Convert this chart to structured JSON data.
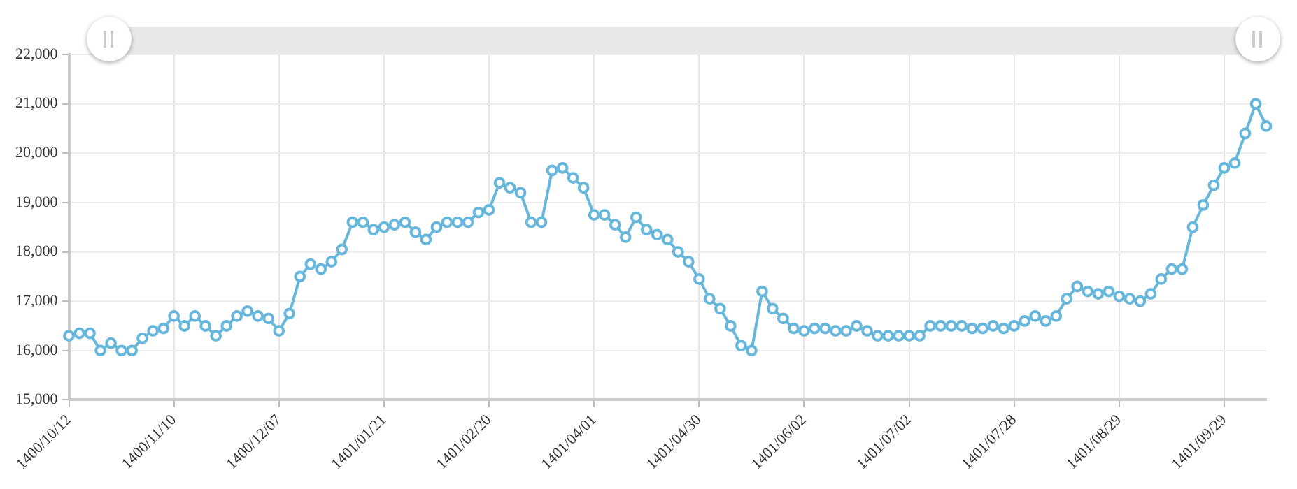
{
  "chart_data": {
    "type": "line",
    "categories": [
      "1400/10/12",
      null,
      null,
      null,
      null,
      null,
      null,
      null,
      null,
      null,
      "1400/11/10",
      null,
      null,
      null,
      null,
      null,
      null,
      null,
      null,
      null,
      "1400/12/07",
      null,
      null,
      null,
      null,
      null,
      null,
      null,
      null,
      null,
      "1401/01/21",
      null,
      null,
      null,
      null,
      null,
      null,
      null,
      null,
      null,
      "1401/02/20",
      null,
      null,
      null,
      null,
      null,
      null,
      null,
      null,
      null,
      "1401/04/01",
      null,
      null,
      null,
      null,
      null,
      null,
      null,
      null,
      null,
      "1401/04/30",
      null,
      null,
      null,
      null,
      null,
      null,
      null,
      null,
      null,
      "1401/06/02",
      null,
      null,
      null,
      null,
      null,
      null,
      null,
      null,
      null,
      "1401/07/02",
      null,
      null,
      null,
      null,
      null,
      null,
      null,
      null,
      null,
      "1401/07/28",
      null,
      null,
      null,
      null,
      null,
      null,
      null,
      null,
      null,
      "1401/08/29",
      null,
      null,
      null,
      null,
      null,
      null,
      null,
      null,
      null,
      "1401/09/29",
      null,
      null,
      null,
      null
    ],
    "series": [
      {
        "color": "#67b7dc",
        "values": [
          16300,
          16350,
          16350,
          16000,
          16150,
          16000,
          16000,
          16250,
          16400,
          16450,
          16700,
          16500,
          16700,
          16500,
          16300,
          16500,
          16700,
          16800,
          16700,
          16650,
          16400,
          16750,
          17500,
          17750,
          17650,
          17800,
          18050,
          18600,
          18600,
          18450,
          18500,
          18550,
          18600,
          18400,
          18250,
          18500,
          18600,
          18600,
          18600,
          18800,
          18850,
          19400,
          19300,
          19200,
          18600,
          18600,
          19650,
          19700,
          19500,
          19300,
          18750,
          18750,
          18550,
          18300,
          18700,
          18450,
          18350,
          18250,
          18000,
          17800,
          17450,
          17050,
          16850,
          16500,
          16100,
          16000,
          17200,
          16850,
          16650,
          16450,
          16400,
          16450,
          16450,
          16400,
          16400,
          16500,
          16400,
          16300,
          16300,
          16300,
          16300,
          16300,
          16500,
          16500,
          16500,
          16500,
          16450,
          16450,
          16500,
          16450,
          16500,
          16600,
          16700,
          16600,
          16700,
          17050,
          17300,
          17200,
          17150,
          17200,
          17100,
          17050,
          17000,
          17150,
          17450,
          17650,
          17650,
          18500,
          18950,
          19350,
          19700,
          19800,
          20400,
          21000,
          20550
        ]
      }
    ],
    "ylim": [
      15000,
      22000
    ],
    "yticks": [
      {
        "value": 15000,
        "label": "15,000"
      },
      {
        "value": 16000,
        "label": "16,000"
      },
      {
        "value": 17000,
        "label": "17,000"
      },
      {
        "value": 18000,
        "label": "18,000"
      },
      {
        "value": 19000,
        "label": "19,000"
      },
      {
        "value": 20000,
        "label": "20,000"
      },
      {
        "value": 21000,
        "label": "21,000"
      },
      {
        "value": 22000,
        "label": "22,000"
      }
    ],
    "grid": true,
    "legend": false,
    "marker": "circle",
    "line_style": "solid"
  }
}
